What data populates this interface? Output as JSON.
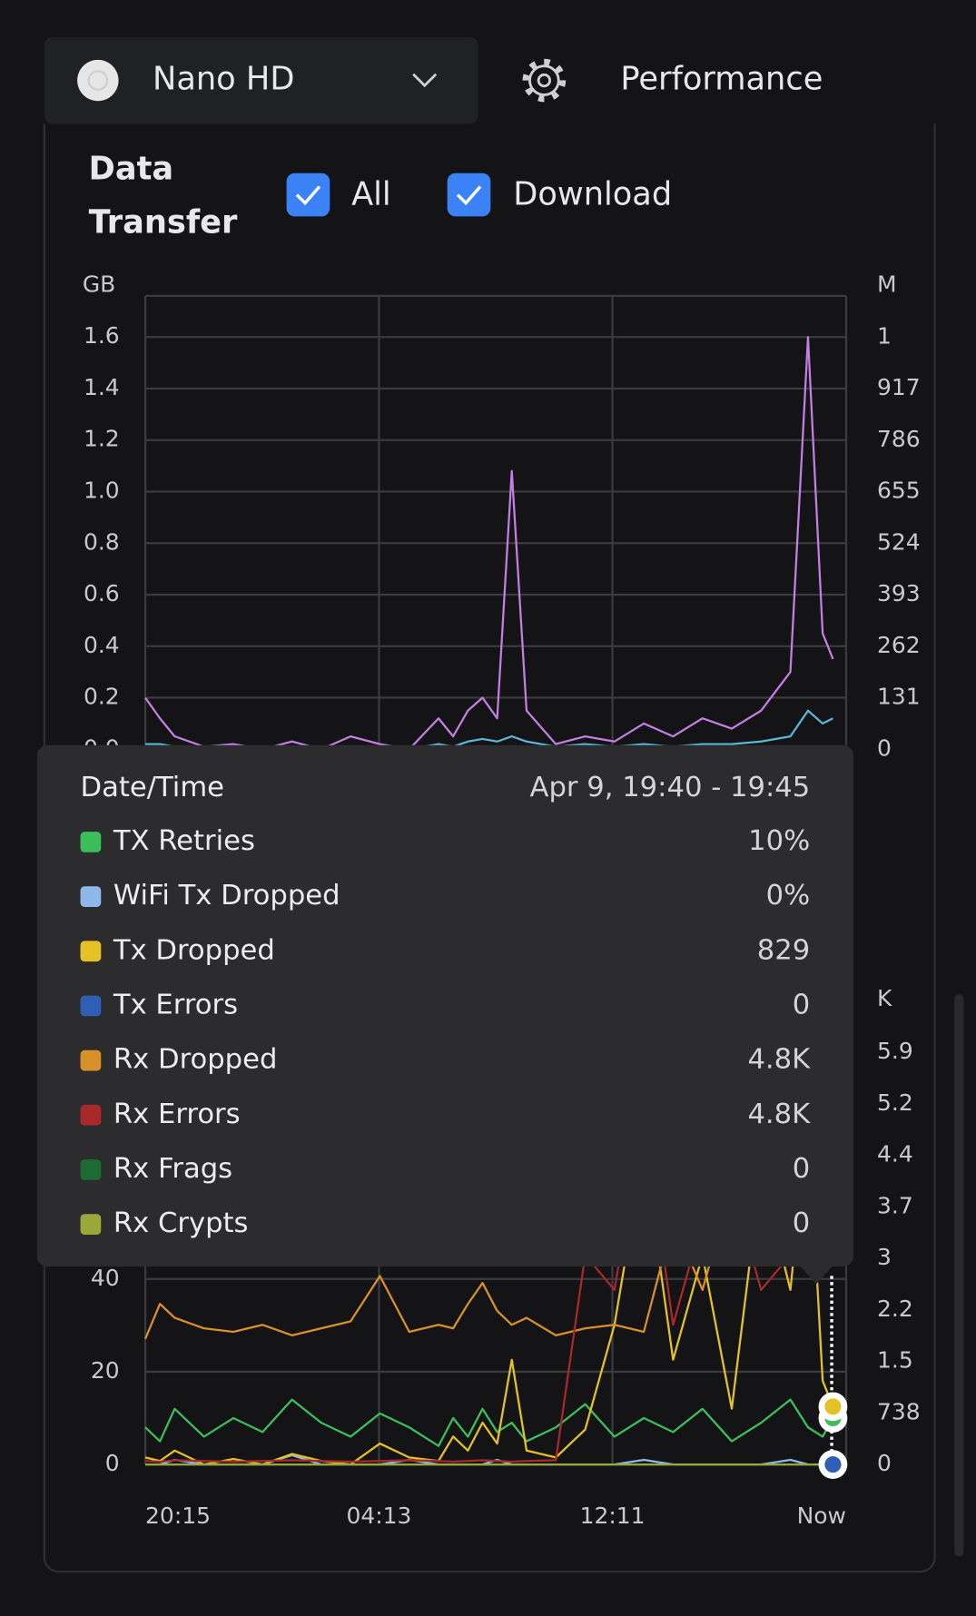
{
  "header": {
    "device": "Nano HD",
    "page": "Performance"
  },
  "section": {
    "title": "Data Transfer"
  },
  "chart_data": [
    {
      "type": "line",
      "ylabel": "GB",
      "y2label": "M",
      "x": [
        0,
        0.5,
        1,
        2,
        3,
        4,
        5,
        6,
        7,
        8,
        9,
        10,
        10.5,
        11,
        11.5,
        12,
        12.5,
        13,
        14,
        15,
        16,
        17,
        18,
        19,
        20,
        21,
        22,
        22.6,
        23.1,
        23.45
      ],
      "xlim": [
        0,
        23.9
      ],
      "ylim": [
        0,
        1.76
      ],
      "yticks": [
        {
          "value": 0,
          "label": "0.0"
        },
        0.2,
        0.4,
        0.6,
        0.8,
        {
          "value": 1,
          "label": "1.0"
        },
        1.2,
        1.4,
        1.6
      ],
      "y2lim": [
        0,
        1153
      ],
      "y2ticks": [
        0,
        131,
        262,
        393,
        524,
        655,
        786,
        917,
        {
          "value": 1048,
          "label": "1"
        }
      ],
      "grid": true,
      "series": [
        {
          "name": "All",
          "color": "#c27ee0",
          "values": [
            0.2,
            0.12,
            0.05,
            0.01,
            0.02,
            0.0,
            0.03,
            0.0,
            0.05,
            0.02,
            0.0,
            0.12,
            0.05,
            0.15,
            0.2,
            0.12,
            1.08,
            0.15,
            0.02,
            0.05,
            0.03,
            0.1,
            0.05,
            0.12,
            0.08,
            0.15,
            0.3,
            1.6,
            0.45,
            0.35
          ]
        },
        {
          "name": "Download",
          "color": "#5cb6d6",
          "values": [
            0.02,
            0.02,
            0.01,
            0,
            0,
            0,
            0.01,
            0,
            0.01,
            0,
            0,
            0.02,
            0.01,
            0.03,
            0.04,
            0.03,
            0.05,
            0.03,
            0.01,
            0.02,
            0.01,
            0.02,
            0.01,
            0.02,
            0.02,
            0.03,
            0.05,
            0.15,
            0.1,
            0.12
          ]
        }
      ]
    },
    {
      "type": "line",
      "y2label": "K",
      "x": [
        0,
        0.5,
        1,
        2,
        3,
        4,
        5,
        6,
        7,
        8,
        9,
        10,
        10.5,
        11,
        11.5,
        12,
        12.5,
        13,
        14,
        15,
        16,
        17,
        18,
        19,
        20,
        21,
        22,
        22.6,
        23.1,
        23.45
      ],
      "xlim": [
        0,
        23.9
      ],
      "xticks": [
        {
          "value": 0,
          "label": "20:15"
        },
        {
          "value": 7.97,
          "label": "04:13"
        },
        {
          "value": 15.93,
          "label": "12:11"
        },
        {
          "value": 23.9,
          "label": "Now"
        }
      ],
      "ylim": [
        0,
        90
      ],
      "yticks": [
        0,
        20,
        40
      ],
      "y2lim": [
        0,
        5978
      ],
      "y2ticks": [
        0,
        738,
        {
          "value": 1476,
          "label": "1.5"
        },
        {
          "value": 2214,
          "label": "2.2"
        },
        {
          "value": 2952,
          "label": "3"
        },
        {
          "value": 3690,
          "label": "3.7"
        },
        {
          "value": 4428,
          "label": "4.4"
        },
        {
          "value": 5166,
          "label": "5.2"
        },
        {
          "value": 5904,
          "label": "5.9"
        }
      ],
      "grid": true,
      "series": [
        {
          "name": "TX Retries",
          "color": "#3cbf5b",
          "values": [
            8,
            5,
            12,
            6,
            10,
            7,
            14,
            9,
            6,
            11,
            8,
            4,
            10,
            6,
            12,
            7,
            9,
            5,
            8,
            13,
            6,
            10,
            7,
            12,
            5,
            9,
            14,
            8,
            6,
            10
          ]
        },
        {
          "name": "WiFi Tx Dropped",
          "color": "#8fb8ea",
          "values": [
            0,
            0,
            1,
            0,
            0,
            0,
            2,
            0,
            0,
            0,
            1,
            0,
            0,
            0,
            0,
            1,
            0,
            0,
            0,
            0,
            0,
            1,
            0,
            0,
            0,
            0,
            1,
            0,
            0,
            0
          ]
        },
        {
          "name": "Tx Dropped",
          "color": "#e4c226",
          "axis": "y2",
          "values": [
            100,
            50,
            200,
            0,
            80,
            0,
            150,
            50,
            0,
            300,
            100,
            50,
            400,
            200,
            600,
            300,
            1500,
            200,
            100,
            500,
            2000,
            4500,
            1500,
            3000,
            800,
            4200,
            2500,
            5000,
            1200,
            829
          ]
        },
        {
          "name": "Tx Errors",
          "color": "#2f5fb5",
          "axis": "y2",
          "values": [
            0,
            0,
            0,
            0,
            0,
            0,
            0,
            0,
            0,
            0,
            0,
            0,
            0,
            0,
            0,
            0,
            0,
            0,
            0,
            0,
            0,
            0,
            0,
            0,
            0,
            0,
            0,
            0,
            0,
            0
          ]
        },
        {
          "name": "Rx Dropped",
          "color": "#d8912a",
          "axis": "y2",
          "values": [
            1800,
            2300,
            2100,
            1950,
            1900,
            2000,
            1850,
            1950,
            2050,
            2700,
            1900,
            2000,
            1950,
            2300,
            2600,
            2200,
            2000,
            2100,
            1850,
            1950,
            2000,
            1900,
            3500,
            2500,
            4000,
            3000,
            3800,
            4800,
            4500,
            4800
          ]
        },
        {
          "name": "Rx Errors",
          "color": "#a8292a",
          "axis": "y2",
          "values": [
            50,
            40,
            60,
            50,
            40,
            50,
            60,
            50,
            40,
            50,
            60,
            50,
            40,
            50,
            60,
            50,
            40,
            50,
            60,
            3000,
            2500,
            5000,
            2000,
            3500,
            4000,
            2500,
            3000,
            5500,
            4000,
            4800
          ]
        },
        {
          "name": "Rx Frags",
          "color": "#1e6a34",
          "axis": "y2",
          "values": [
            0,
            0,
            0,
            0,
            0,
            0,
            0,
            0,
            0,
            0,
            0,
            0,
            0,
            0,
            0,
            0,
            0,
            0,
            0,
            0,
            0,
            0,
            0,
            0,
            0,
            0,
            0,
            0,
            0,
            0
          ]
        },
        {
          "name": "Rx Crypts",
          "color": "#9aa83a",
          "axis": "y2",
          "values": [
            0,
            0,
            0,
            0,
            0,
            0,
            0,
            0,
            0,
            0,
            0,
            0,
            0,
            0,
            0,
            0,
            0,
            0,
            0,
            0,
            0,
            0,
            0,
            0,
            0,
            0,
            0,
            0,
            0,
            0
          ]
        }
      ]
    }
  ],
  "tooltip": {
    "header": "Date/Time",
    "time": "Apr 9, 19:40 - 19:45",
    "values": [
      "10%",
      "0%",
      "829",
      "0",
      "4.8K",
      "4.8K",
      "0",
      "0"
    ]
  }
}
